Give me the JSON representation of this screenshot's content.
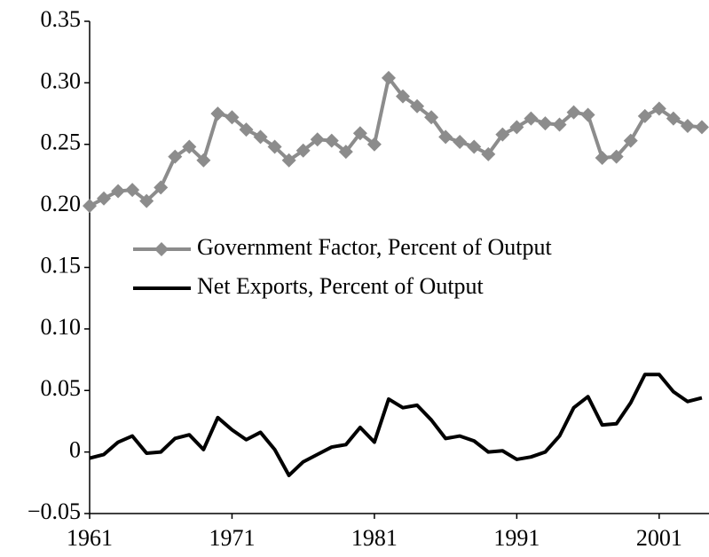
{
  "chart_data": {
    "type": "line",
    "x": [
      1961,
      1962,
      1963,
      1964,
      1965,
      1966,
      1967,
      1968,
      1969,
      1970,
      1971,
      1972,
      1973,
      1974,
      1975,
      1976,
      1977,
      1978,
      1979,
      1980,
      1981,
      1982,
      1983,
      1984,
      1985,
      1986,
      1987,
      1988,
      1989,
      1990,
      1991,
      1992,
      1993,
      1994,
      1995,
      1996,
      1997,
      1998,
      1999,
      2000,
      2001,
      2002,
      2003,
      2004
    ],
    "series": [
      {
        "name": "Government Factor, Percent of Output",
        "color": "#8c8c8c",
        "marker": "diamond",
        "values": [
          0.2,
          0.206,
          0.212,
          0.213,
          0.204,
          0.215,
          0.24,
          0.248,
          0.237,
          0.275,
          0.272,
          0.262,
          0.256,
          0.248,
          0.237,
          0.245,
          0.254,
          0.253,
          0.244,
          0.259,
          0.25,
          0.304,
          0.289,
          0.281,
          0.272,
          0.256,
          0.252,
          0.248,
          0.242,
          0.258,
          0.264,
          0.271,
          0.267,
          0.266,
          0.276,
          0.274,
          0.239,
          0.24,
          0.253,
          0.273,
          0.279,
          0.271,
          0.265,
          0.264
        ]
      },
      {
        "name": "Net Exports, Percent of Output",
        "color": "#000000",
        "values": [
          -0.005,
          -0.002,
          0.008,
          0.013,
          -0.001,
          0.0,
          0.011,
          0.014,
          0.002,
          0.028,
          0.018,
          0.01,
          0.016,
          0.002,
          -0.019,
          -0.008,
          -0.002,
          0.004,
          0.006,
          0.02,
          0.008,
          0.043,
          0.036,
          0.038,
          0.026,
          0.011,
          0.013,
          0.009,
          0.0,
          0.001,
          -0.006,
          -0.004,
          0.0,
          0.013,
          0.036,
          0.045,
          0.022,
          0.023,
          0.04,
          0.063,
          0.063,
          0.049,
          0.041,
          0.044
        ]
      }
    ],
    "xlim": [
      1961,
      2004.5
    ],
    "xticks": [
      1961,
      1971,
      1981,
      1991,
      2001
    ],
    "ylim": [
      -0.05,
      0.35
    ],
    "yticks": [
      0.35,
      {
        "value": 0.3,
        "label": "0.30"
      },
      0.25,
      {
        "value": 0.2,
        "label": "0.20"
      },
      0.15,
      {
        "value": 0.1,
        "label": "0.10"
      },
      0.05,
      0,
      {
        "value": -0.05,
        "label": "−0.05"
      }
    ],
    "grid": false,
    "legend": "center-left"
  }
}
